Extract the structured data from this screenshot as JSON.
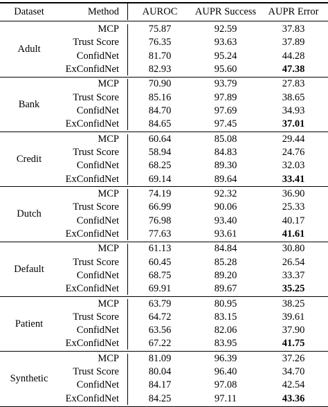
{
  "header": {
    "dataset": "Dataset",
    "method": "Method",
    "auroc": "AUROC",
    "aupr_success": "AUPR Success",
    "aupr_error": "AUPR Error"
  },
  "groups": [
    {
      "dataset": "Adult",
      "rows": [
        {
          "method": "MCP",
          "auroc": "75.87",
          "aupr_success": "92.59",
          "aupr_error": "37.83",
          "bold": false
        },
        {
          "method": "Trust Score",
          "auroc": "76.35",
          "aupr_success": "93.63",
          "aupr_error": "37.89",
          "bold": false
        },
        {
          "method": "ConfidNet",
          "auroc": "81.70",
          "aupr_success": "95.24",
          "aupr_error": "44.28",
          "bold": false
        },
        {
          "method": "ExConfidNet",
          "auroc": "82.93",
          "aupr_success": "95.60",
          "aupr_error": "47.38",
          "bold": true
        }
      ]
    },
    {
      "dataset": "Bank",
      "rows": [
        {
          "method": "MCP",
          "auroc": "70.90",
          "aupr_success": "93.79",
          "aupr_error": "27.83",
          "bold": false
        },
        {
          "method": "Trust Score",
          "auroc": "85.16",
          "aupr_success": "97.89",
          "aupr_error": "38.65",
          "bold": false
        },
        {
          "method": "ConfidNet",
          "auroc": "84.70",
          "aupr_success": "97.69",
          "aupr_error": "34.93",
          "bold": false
        },
        {
          "method": "ExConfidNet",
          "auroc": "84.65",
          "aupr_success": "97.45",
          "aupr_error": "37.01",
          "bold": true
        }
      ]
    },
    {
      "dataset": "Credit",
      "rows": [
        {
          "method": "MCP",
          "auroc": "60.64",
          "aupr_success": "85.08",
          "aupr_error": "29.44",
          "bold": false
        },
        {
          "method": "Trust Score",
          "auroc": "58.94",
          "aupr_success": "84.83",
          "aupr_error": "24.76",
          "bold": false
        },
        {
          "method": "ConfidNet",
          "auroc": "68.25",
          "aupr_success": "89.30",
          "aupr_error": "32.03",
          "bold": false
        },
        {
          "method": "ExConfidNet",
          "auroc": "69.14",
          "aupr_success": "89.64",
          "aupr_error": "33.41",
          "bold": true
        }
      ]
    },
    {
      "dataset": "Dutch",
      "rows": [
        {
          "method": "MCP",
          "auroc": "74.19",
          "aupr_success": "92.32",
          "aupr_error": "36.90",
          "bold": false
        },
        {
          "method": "Trust Score",
          "auroc": "66.99",
          "aupr_success": "90.06",
          "aupr_error": "25.33",
          "bold": false
        },
        {
          "method": "ConfidNet",
          "auroc": "76.98",
          "aupr_success": "93.40",
          "aupr_error": "40.17",
          "bold": false
        },
        {
          "method": "ExConfidNet",
          "auroc": "77.63",
          "aupr_success": "93.61",
          "aupr_error": "41.61",
          "bold": true
        }
      ]
    },
    {
      "dataset": "Default",
      "rows": [
        {
          "method": "MCP",
          "auroc": "61.13",
          "aupr_success": "84.84",
          "aupr_error": "30.80",
          "bold": false
        },
        {
          "method": "Trust Score",
          "auroc": "60.45",
          "aupr_success": "85.28",
          "aupr_error": "26.54",
          "bold": false
        },
        {
          "method": "ConfidNet",
          "auroc": "68.75",
          "aupr_success": "89.20",
          "aupr_error": "33.37",
          "bold": false
        },
        {
          "method": "ExConfidNet",
          "auroc": "69.91",
          "aupr_success": "89.67",
          "aupr_error": "35.25",
          "bold": true
        }
      ]
    },
    {
      "dataset": "Patient",
      "rows": [
        {
          "method": "MCP",
          "auroc": "63.79",
          "aupr_success": "80.95",
          "aupr_error": "38.25",
          "bold": false
        },
        {
          "method": "Trust Score",
          "auroc": "64.72",
          "aupr_success": "83.15",
          "aupr_error": "39.61",
          "bold": false
        },
        {
          "method": "ConfidNet",
          "auroc": "63.56",
          "aupr_success": "82.06",
          "aupr_error": "37.90",
          "bold": false
        },
        {
          "method": "ExConfidNet",
          "auroc": "67.22",
          "aupr_success": "83.95",
          "aupr_error": "41.75",
          "bold": true
        }
      ]
    },
    {
      "dataset": "Synthetic",
      "rows": [
        {
          "method": "MCP",
          "auroc": "81.09",
          "aupr_success": "96.39",
          "aupr_error": "37.26",
          "bold": false
        },
        {
          "method": "Trust Score",
          "auroc": "80.04",
          "aupr_success": "96.40",
          "aupr_error": "34.70",
          "bold": false
        },
        {
          "method": "ConfidNet",
          "auroc": "84.17",
          "aupr_success": "97.08",
          "aupr_error": "42.54",
          "bold": false
        },
        {
          "method": "ExConfidNet",
          "auroc": "84.25",
          "aupr_success": "97.11",
          "aupr_error": "43.36",
          "bold": true
        }
      ]
    }
  ]
}
